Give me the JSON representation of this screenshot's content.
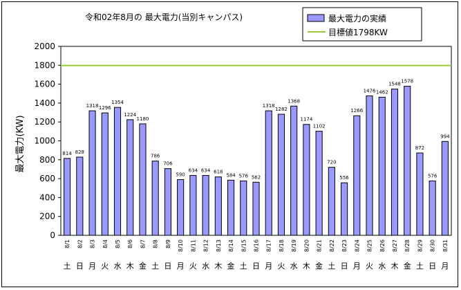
{
  "chart_data": {
    "type": "bar",
    "title": "令和02年8月の 最大電力(当別キャンパス)",
    "ylabel": "最大電力(KW)",
    "xlabel": "",
    "ylim": [
      0,
      2000
    ],
    "yticks": [
      0,
      200,
      400,
      600,
      800,
      1000,
      1200,
      1400,
      1600,
      1800,
      2000
    ],
    "grid": false,
    "legend_position": "top-right",
    "categories": [
      "8/1",
      "8/2",
      "8/3",
      "8/4",
      "8/5",
      "8/6",
      "8/7",
      "8/8",
      "8/9",
      "8/10",
      "8/11",
      "8/12",
      "8/13",
      "8/14",
      "8/15",
      "8/16",
      "8/17",
      "8/18",
      "8/19",
      "8/20",
      "8/21",
      "8/22",
      "8/23",
      "8/24",
      "8/25",
      "8/26",
      "8/27",
      "8/28",
      "8/29",
      "8/30",
      "8/31"
    ],
    "weekdays": [
      "土",
      "日",
      "月",
      "火",
      "水",
      "木",
      "金",
      "土",
      "日",
      "月",
      "火",
      "水",
      "木",
      "金",
      "土",
      "日",
      "月",
      "火",
      "水",
      "木",
      "金",
      "土",
      "日",
      "月",
      "火",
      "水",
      "木",
      "金",
      "土",
      "日",
      "月"
    ],
    "series": [
      {
        "name": "最大電力の実績",
        "type": "bar",
        "color": "#9999ff",
        "values": [
          814,
          828,
          1318,
          1296,
          1354,
          1224,
          1180,
          786,
          706,
          590,
          634,
          634,
          618,
          584,
          576,
          562,
          1318,
          1282,
          1368,
          1174,
          1102,
          720,
          556,
          1266,
          1476,
          1462,
          1548,
          1578,
          872,
          576,
          994
        ]
      },
      {
        "name": "目標値1798KW",
        "type": "line",
        "color": "#99cc33",
        "value": 1798
      }
    ]
  }
}
